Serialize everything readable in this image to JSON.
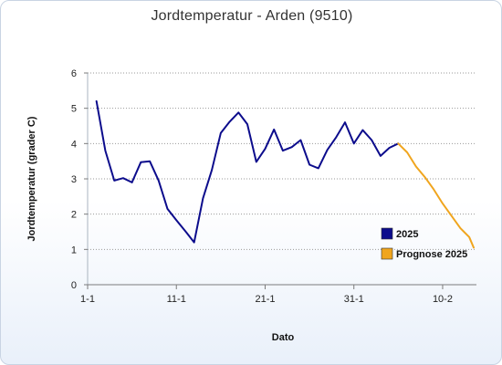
{
  "chart_data": {
    "type": "line",
    "title": "Jordtemperatur - Arden (9510)",
    "xlabel": "Dato",
    "ylabel": "Jordtemperatur (grader C)",
    "ylim": [
      0,
      6
    ],
    "yticks": [
      "0",
      "1",
      "2",
      "3",
      "4",
      "5",
      "6"
    ],
    "xlim": [
      1,
      44.5
    ],
    "xticks": [
      {
        "day": 1,
        "label": "1-1"
      },
      {
        "day": 11,
        "label": "11-1"
      },
      {
        "day": 21,
        "label": "21-1"
      },
      {
        "day": 31,
        "label": "31-1"
      },
      {
        "day": 41,
        "label": "10-2"
      }
    ],
    "grid": "horizontal dotted",
    "legend_position": "lower-right",
    "series": [
      {
        "name": "2025",
        "color": "#0c0c8c",
        "x": [
          2,
          3,
          4,
          5,
          6,
          7,
          8,
          9,
          10,
          11,
          12,
          13,
          14,
          15,
          16,
          17,
          18,
          19,
          20,
          21,
          22,
          23,
          24,
          25,
          26,
          27,
          28,
          29,
          30,
          31,
          32,
          33,
          34,
          35,
          36
        ],
        "y": [
          5.2,
          3.8,
          2.95,
          3.02,
          2.9,
          3.47,
          3.5,
          2.95,
          2.15,
          1.83,
          1.52,
          1.2,
          2.45,
          3.25,
          4.3,
          4.62,
          4.88,
          4.55,
          3.48,
          3.85,
          4.4,
          3.8,
          3.9,
          4.1,
          3.4,
          3.3,
          3.82,
          4.18,
          4.6,
          4.0,
          4.38,
          4.1,
          3.65,
          3.88,
          4.0
        ]
      },
      {
        "name": "Prognose 2025",
        "color": "#f0a51e",
        "x": [
          36,
          37,
          38,
          39,
          40,
          41,
          42,
          43,
          44,
          44.5
        ],
        "y": [
          4.0,
          3.75,
          3.35,
          3.05,
          2.7,
          2.3,
          1.95,
          1.6,
          1.35,
          1.05
        ]
      }
    ]
  }
}
